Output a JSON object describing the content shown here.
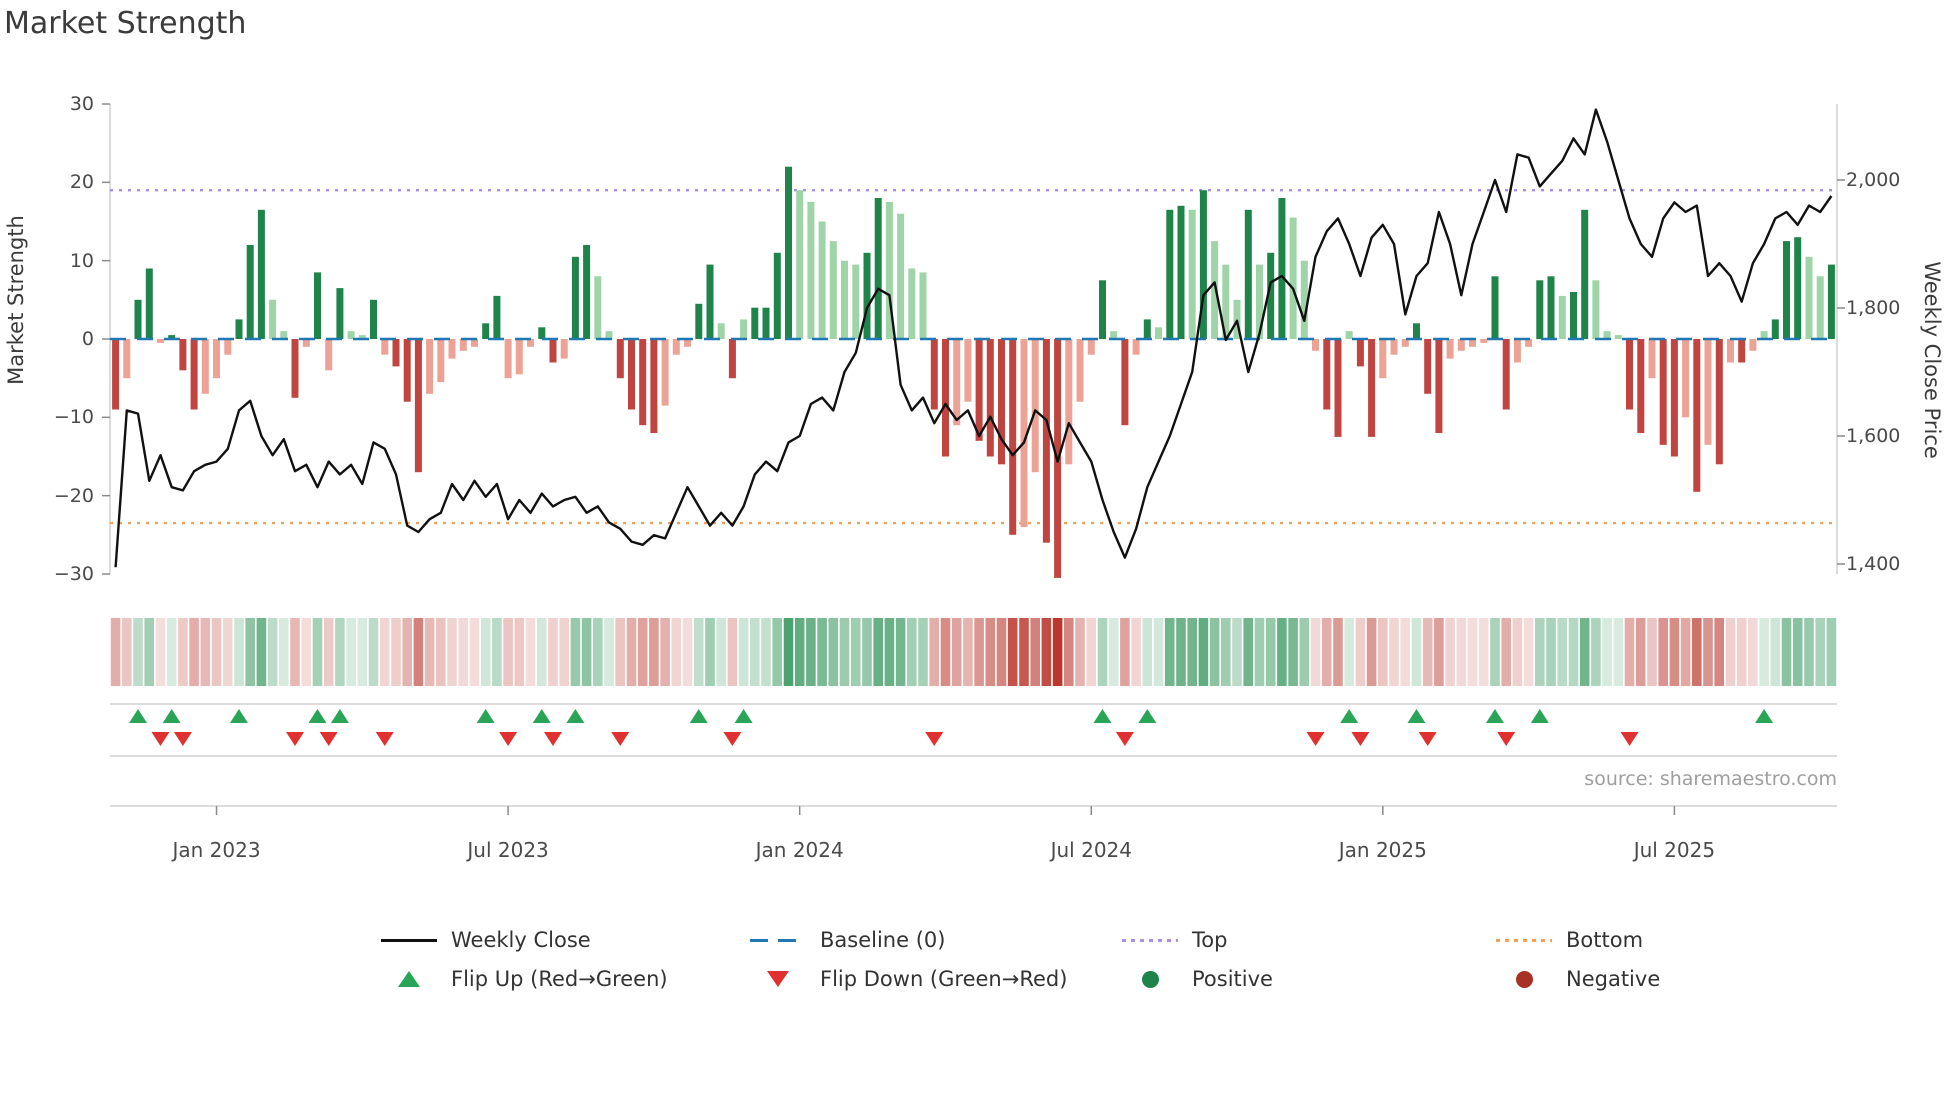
{
  "title": "Market Strength",
  "source": "source: sharemaestro.com",
  "axes": {
    "left": {
      "label": "Market Strength",
      "ticks": [
        "30",
        "20",
        "10",
        "0",
        "−10",
        "−20",
        "−30"
      ]
    },
    "right": {
      "label": "Weekly Close Price",
      "ticks": [
        "2,000",
        "1,800",
        "1,600",
        "1,400"
      ]
    },
    "x": {
      "ticks": [
        "Jan 2023",
        "Jul 2023",
        "Jan 2024",
        "Jul 2024",
        "Jan 2025",
        "Jul 2025"
      ]
    }
  },
  "legend": {
    "items": [
      {
        "label": "Weekly Close",
        "marker": "black-line"
      },
      {
        "label": "Baseline (0)",
        "marker": "blue-dashed-line"
      },
      {
        "label": "Top",
        "marker": "purple-dotted-line"
      },
      {
        "label": "Bottom",
        "marker": "orange-dotted-line"
      },
      {
        "label": "Flip Up (Red→Green)",
        "marker": "green-up-triangle"
      },
      {
        "label": "Flip Down (Green→Red)",
        "marker": "red-down-triangle"
      },
      {
        "label": "Positive",
        "marker": "green-dot"
      },
      {
        "label": "Negative",
        "marker": "dark-red-dot"
      }
    ]
  },
  "colors": {
    "bar_green_dark": "#1e8449",
    "bar_green_light": "#9fd4a8",
    "bar_red_dark": "#c0443f",
    "bar_red_light": "#eca294",
    "price_line": "#111111",
    "baseline": "#1f77b4",
    "top_line": "#a98ee6",
    "bottom_line": "#f0a258",
    "flip_up": "#2aa558",
    "flip_down": "#e03131",
    "positive_dot": "#1e8449",
    "negative_dot": "#a93226",
    "heat_green": "25,135,70",
    "heat_red": "185,55,45"
  },
  "chart_data": {
    "type": "bar+line",
    "title": "Market Strength",
    "frequency": "weekly",
    "start_week": "2022-10-31",
    "weeks": 154,
    "strength_axis": {
      "label": "Market Strength",
      "min": -30,
      "max": 30,
      "tick_values": [
        30,
        20,
        10,
        0,
        -10,
        -20,
        -30
      ]
    },
    "price_axis": {
      "label": "Weekly Close Price",
      "min": 1400,
      "max": 2000,
      "tick_values": [
        2000,
        1800,
        1600,
        1400
      ]
    },
    "baseline": 0,
    "top_threshold": 19,
    "bottom_threshold": -23.5,
    "x_tick_weeks": [
      9,
      35,
      61,
      87,
      113,
      139
    ],
    "x_tick_labels": [
      "Jan 2023",
      "Jul 2023",
      "Jan 2024",
      "Jul 2024",
      "Jan 2025",
      "Jul 2025"
    ],
    "strength": [
      -9,
      -5,
      5,
      9,
      -0.5,
      0.5,
      -4,
      -9,
      -7,
      -5,
      -2,
      2.5,
      12,
      16.5,
      5,
      1,
      -7.5,
      -1,
      8.5,
      -4,
      6.5,
      1,
      0.5,
      5,
      -2,
      -3.5,
      -8,
      -17,
      -7,
      -5.5,
      -2.5,
      -1.5,
      -1,
      2,
      5.5,
      -5,
      -4.5,
      -1,
      1.5,
      -3,
      -2.5,
      10.5,
      12,
      8,
      1,
      -5,
      -9,
      -11,
      -12,
      -8.5,
      -2,
      -1,
      4.5,
      9.5,
      2,
      -5,
      2.5,
      4,
      4,
      11,
      22,
      19,
      17.5,
      15,
      12.5,
      10,
      9.5,
      11,
      18,
      17.5,
      16,
      9,
      8.5,
      -9,
      -15,
      -11,
      -8,
      -13,
      -15,
      -16,
      -25,
      -24,
      -17,
      -26,
      -30.5,
      -16,
      -8,
      -2,
      7.5,
      1,
      -11,
      -2,
      2.5,
      1.5,
      16.5,
      17,
      16.5,
      19,
      12.5,
      9.5,
      5,
      16.5,
      9.5,
      11,
      18,
      15.5,
      10,
      -1.5,
      -9,
      -12.5,
      1,
      -3.5,
      -12.5,
      -5,
      -2,
      -1,
      2,
      -7,
      -12,
      -2.5,
      -1.5,
      -1,
      -0.5,
      8,
      -9,
      -3,
      -1,
      7.5,
      8,
      5.5,
      6,
      16.5,
      7.5,
      1,
      0.5,
      -9,
      -12,
      -5,
      -13.5,
      -15,
      -10,
      -19.5,
      -13.5,
      -16,
      -3,
      -3,
      -1.5,
      1,
      2.5,
      12.5,
      13,
      10.5,
      8,
      9.5
    ],
    "price": [
      1395,
      1640,
      1635,
      1530,
      1570,
      1520,
      1515,
      1545,
      1555,
      1560,
      1580,
      1640,
      1655,
      1600,
      1570,
      1595,
      1545,
      1555,
      1520,
      1560,
      1540,
      1555,
      1525,
      1590,
      1580,
      1540,
      1460,
      1450,
      1470,
      1480,
      1525,
      1500,
      1530,
      1505,
      1525,
      1470,
      1500,
      1480,
      1510,
      1490,
      1500,
      1505,
      1480,
      1490,
      1465,
      1455,
      1435,
      1430,
      1445,
      1440,
      1480,
      1520,
      1490,
      1460,
      1480,
      1460,
      1490,
      1540,
      1560,
      1545,
      1590,
      1600,
      1650,
      1660,
      1640,
      1700,
      1730,
      1800,
      1830,
      1820,
      1680,
      1640,
      1660,
      1620,
      1650,
      1625,
      1640,
      1600,
      1630,
      1595,
      1570,
      1590,
      1640,
      1625,
      1560,
      1620,
      1590,
      1560,
      1500,
      1450,
      1410,
      1455,
      1520,
      1560,
      1600,
      1650,
      1700,
      1820,
      1840,
      1750,
      1780,
      1700,
      1760,
      1840,
      1850,
      1830,
      1780,
      1880,
      1920,
      1940,
      1900,
      1850,
      1910,
      1930,
      1900,
      1790,
      1850,
      1870,
      1950,
      1900,
      1820,
      1900,
      1950,
      2000,
      1950,
      2040,
      2035,
      1990,
      2010,
      2030,
      2065,
      2040,
      2110,
      2060,
      2000,
      1940,
      1900,
      1880,
      1940,
      1965,
      1950,
      1960,
      1850,
      1870,
      1850,
      1810,
      1870,
      1900,
      1940,
      1950,
      1930,
      1960,
      1950,
      1975
    ],
    "flip_up_weeks": [
      2,
      5,
      11,
      18,
      20,
      33,
      38,
      41,
      52,
      56,
      88,
      92,
      110,
      116,
      123,
      127,
      147
    ],
    "flip_down_weeks": [
      4,
      6,
      16,
      19,
      24,
      35,
      39,
      45,
      55,
      73,
      90,
      107,
      111,
      117,
      124,
      135
    ]
  }
}
